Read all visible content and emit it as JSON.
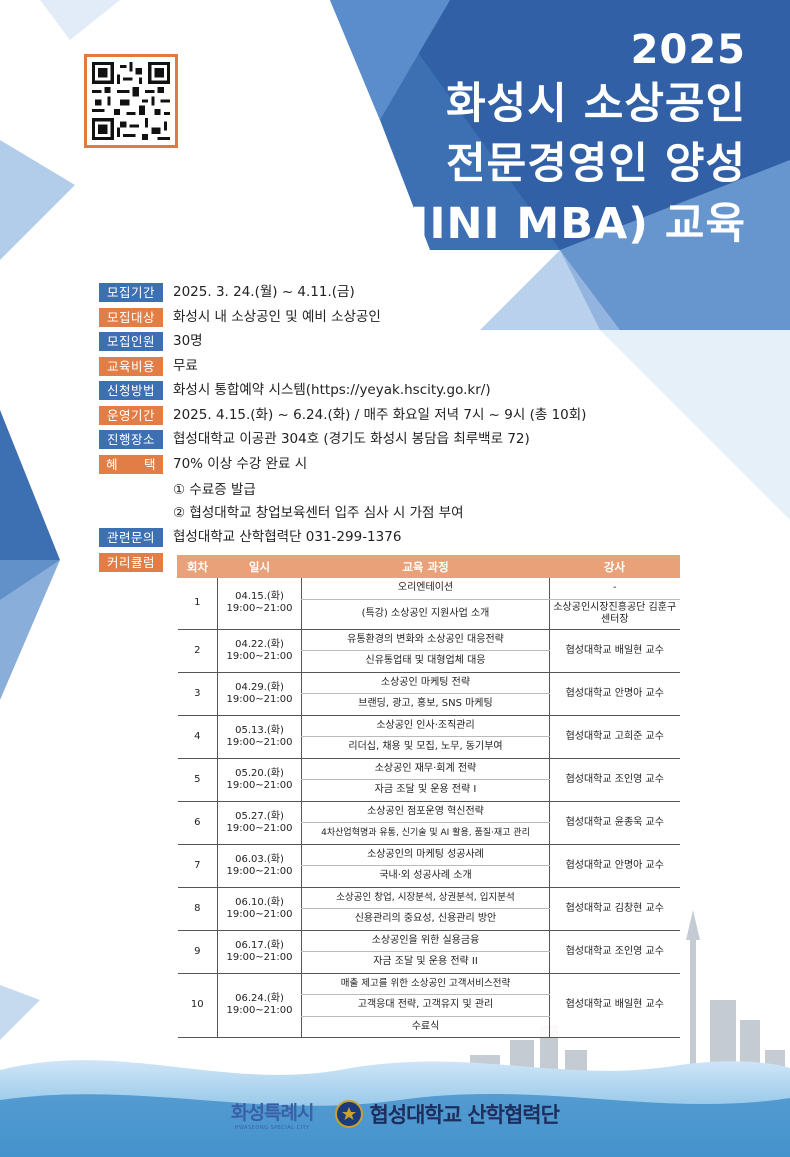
{
  "header": {
    "year": "2025",
    "title_lines": [
      "화성시 소상공인",
      "전문경영인 양성",
      "(MINI MBA) 교육"
    ]
  },
  "info": [
    {
      "label": "모집기간",
      "value": "2025. 3. 24.(월) ~ 4.11.(금)",
      "color": "blue"
    },
    {
      "label": "모집대상",
      "value": "화성시 내 소상공인 및 예비 소상공인",
      "color": "orange"
    },
    {
      "label": "모집인원",
      "value": "30명",
      "color": "blue"
    },
    {
      "label": "교육비용",
      "value": "무료",
      "color": "orange"
    },
    {
      "label": "신청방법",
      "value": "화성시 통합예약 시스템(https://yeyak.hscity.go.kr/)",
      "color": "blue"
    },
    {
      "label": "운영기간",
      "value": "2025. 4.15.(화) ~ 6.24.(화) / 매주 화요일 저녁 7시 ~ 9시 (총 10회)",
      "color": "orange"
    },
    {
      "label": "진행장소",
      "value": "협성대학교 이공관 304호 (경기도 화성시 봉담읍 최루백로 72)",
      "color": "blue"
    },
    {
      "label": "혜　　택",
      "value": "70% 이상 수강 완료 시",
      "color": "orange"
    }
  ],
  "benefits": [
    "① 수료증 발급",
    "② 협성대학교 창업보육센터 입주 심사 시 가점 부여"
  ],
  "contact": {
    "label": "관련문의",
    "value": "협성대학교 산학협력단 031-299-1376"
  },
  "curriculum": {
    "label": "커리큘럼",
    "headers": [
      "회차",
      "일시",
      "교육 과정",
      "강사"
    ],
    "sessions": [
      {
        "no": "1",
        "date": "04.15.(화)",
        "time": "19:00~21:00",
        "courses": [
          "오리엔테이션",
          "(특강) 소상공인 지원사업 소개"
        ],
        "instructor_split": [
          "-",
          "소상공인시장진흥공단 김훈구 센터장"
        ]
      },
      {
        "no": "2",
        "date": "04.22.(화)",
        "time": "19:00~21:00",
        "courses": [
          "유통환경의 변화와 소상공인 대응전략",
          "신유통업태 및 대형업체 대응"
        ],
        "instructor": "협성대학교 배일현 교수"
      },
      {
        "no": "3",
        "date": "04.29.(화)",
        "time": "19:00~21:00",
        "courses": [
          "소상공인 마케팅 전략",
          "브랜딩, 광고, 홍보, SNS 마케팅"
        ],
        "instructor": "협성대학교 안명아 교수"
      },
      {
        "no": "4",
        "date": "05.13.(화)",
        "time": "19:00~21:00",
        "courses": [
          "소상공인 인사·조직관리",
          "리더십, 채용 및 모집, 노무, 동기부여"
        ],
        "instructor": "협성대학교 고희준 교수"
      },
      {
        "no": "5",
        "date": "05.20.(화)",
        "time": "19:00~21:00",
        "courses": [
          "소상공인 재무·회계 전략",
          "자금 조달 및 운용 전략 I"
        ],
        "instructor": "협성대학교 조인영 교수"
      },
      {
        "no": "6",
        "date": "05.27.(화)",
        "time": "19:00~21:00",
        "courses": [
          "소상공인 점포운영 혁신전략",
          "4차산업혁명과 유통, 신기술 및 AI 활용, 품질·재고 관리"
        ],
        "instructor": "협성대학교 윤종욱 교수"
      },
      {
        "no": "7",
        "date": "06.03.(화)",
        "time": "19:00~21:00",
        "courses": [
          "소상공인의 마케팅 성공사례",
          "국내·외 성공사례 소개"
        ],
        "instructor": "협성대학교 안명아 교수"
      },
      {
        "no": "8",
        "date": "06.10.(화)",
        "time": "19:00~21:00",
        "courses": [
          "소상공인 창업, 시장분석, 상권분석, 입지분석",
          "신용관리의 중요성, 신용관리 방안"
        ],
        "instructor": "협성대학교 김창현 교수"
      },
      {
        "no": "9",
        "date": "06.17.(화)",
        "time": "19:00~21:00",
        "courses": [
          "소상공인을 위한 실용금융",
          "자금 조달 및 운용 전략 II"
        ],
        "instructor": "협성대학교 조인영 교수"
      },
      {
        "no": "10",
        "date": "06.24.(화)",
        "time": "19:00~21:00",
        "courses": [
          "매출 제고를 위한 소상공인 고객서비스전략",
          "고객응대 전략, 고객유지 및 관리",
          "수료식"
        ],
        "instructor": "협성대학교 배일현 교수"
      }
    ]
  },
  "footer": {
    "city_logo": "화성특례시",
    "city_logo_sub": "HWASEONG SPECIAL CITY",
    "university": "협성대학교 산학협력단"
  },
  "colors": {
    "orange": "#e27e45",
    "blue": "#3d6fb3",
    "title_bg": "#3b6bb0",
    "table_header": "#e8a178"
  }
}
